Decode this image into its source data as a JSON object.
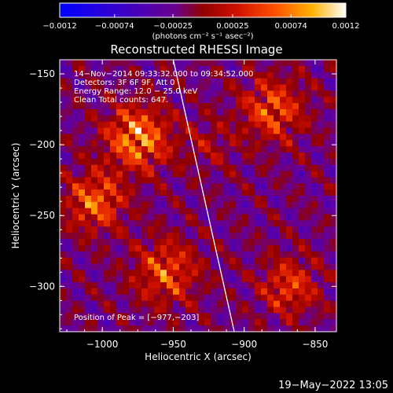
{
  "chart_data": {
    "type": "heatmap",
    "title": "Reconstructed RHESSI Image",
    "xlabel": "Heliocentric X (arcsec)",
    "ylabel": "Heliocentric Y (arcsec)",
    "xlim": [
      -1030,
      -835
    ],
    "ylim": [
      -332,
      -140
    ],
    "x_ticks": [
      -1000,
      -950,
      -900,
      -850
    ],
    "x_tick_labels": [
      "−1000",
      "−950",
      "−900",
      "−850"
    ],
    "y_ticks": [
      -150,
      -200,
      -250,
      -300
    ],
    "y_tick_labels": [
      "−150",
      "−200",
      "−250",
      "−300"
    ],
    "colorbar": {
      "range": [
        -0.0012,
        0.0012
      ],
      "ticks": [
        -0.0012,
        -0.00074,
        -0.00025,
        0.00025,
        0.00074,
        0.0012
      ],
      "tick_labels": [
        "−0.0012",
        "−0.00074",
        "−0.00025",
        "0.00025",
        "0.00074",
        "0.0012"
      ],
      "unit_label": "(photons cm⁻² s⁻¹ asec⁻²)"
    },
    "info_lines": [
      "14−Nov−2014 09:33:32.000 to 09:34:52.000",
      "Detectors: 3F 6F 9F, Att 0",
      "Energy Range: 12.0 − 25.0 keV",
      "Clean     Total counts: 647."
    ],
    "peak_label": "Position of Peak = [−977,−203]",
    "peak": [
      -977,
      -203
    ],
    "limb_line": [
      [
        -950,
        -140
      ],
      [
        -907,
        -332
      ]
    ]
  },
  "footer": {
    "timestamp": "19−May−2022 13:05"
  }
}
